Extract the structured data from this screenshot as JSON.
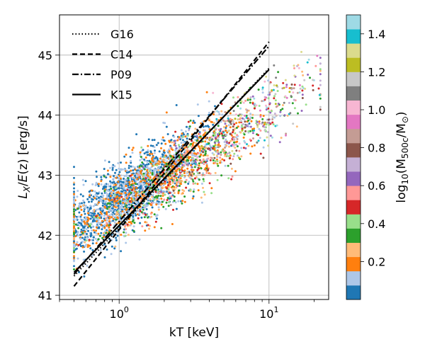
{
  "chart_data": {
    "type": "scatter",
    "title": "",
    "xlabel": "kT [keV]",
    "ylabel": "L_X/E(z) [erg/s]",
    "xscale": "log",
    "xlim": [
      0.4,
      25
    ],
    "ylim": [
      40.93,
      45.67
    ],
    "grid": true,
    "x_ticks": [
      {
        "value": 1,
        "base": "10",
        "exp": "0"
      },
      {
        "value": 10,
        "base": "10",
        "exp": "1"
      }
    ],
    "y_ticks": [
      41,
      42,
      43,
      44,
      45
    ],
    "legend": {
      "placement": "top-left",
      "entries": [
        {
          "label": "G16",
          "dash": "dotted"
        },
        {
          "label": "C14",
          "dash": "dashed"
        },
        {
          "label": "P09",
          "dash": "dashdot"
        },
        {
          "label": "K15",
          "dash": "solid"
        }
      ]
    },
    "relations": [
      {
        "name": "G16",
        "dash": "dotted",
        "x": [
          0.5,
          10
        ],
        "y": [
          41.32,
          44.78
        ]
      },
      {
        "name": "C14",
        "dash": "dashed",
        "x": [
          0.5,
          10
        ],
        "y": [
          41.15,
          45.22
        ]
      },
      {
        "name": "P09",
        "dash": "dashdot",
        "x": [
          0.5,
          10
        ],
        "y": [
          41.35,
          45.15
        ]
      },
      {
        "name": "K15",
        "dash": "solid",
        "x": [
          0.5,
          10
        ],
        "y": [
          41.38,
          44.76
        ]
      }
    ],
    "scatter_cloud": {
      "x_range": [
        0.5,
        22
      ],
      "mass_bins": [
        {
          "min_log_mass": 0.0,
          "center_log_y_at_1keV": 42.62,
          "x_center_log": 0.05,
          "x_spread_log": 0.25,
          "count": 1400
        },
        {
          "min_log_mass": 0.1,
          "center_log_y_at_1keV": 42.55,
          "x_center_log": 0.2,
          "x_spread_log": 0.32,
          "count": 900
        },
        {
          "min_log_mass": 0.2,
          "center_log_y_at_1keV": 42.45,
          "x_center_log": 0.4,
          "x_spread_log": 0.35,
          "count": 500
        },
        {
          "min_log_mass": 0.4,
          "center_log_y_at_1keV": 42.45,
          "x_center_log": 0.55,
          "x_spread_log": 0.35,
          "count": 220
        },
        {
          "min_log_mass": 0.6,
          "center_log_y_at_1keV": 42.5,
          "x_center_log": 0.75,
          "x_spread_log": 0.3,
          "count": 160
        },
        {
          "min_log_mass": 0.9,
          "center_log_y_at_1keV": 42.55,
          "x_center_log": 0.9,
          "x_spread_log": 0.22,
          "count": 120
        }
      ]
    },
    "colorbar": {
      "label_base": "log",
      "label_sub": "10",
      "label_open": "(M",
      "label_mass_sub": "500c",
      "label_slash": "/M",
      "label_sun": "⊙",
      "label_close": ")",
      "range": [
        0.0,
        1.5
      ],
      "colors": [
        "#1f77b4",
        "#aec7e8",
        "#ff7f0e",
        "#ffbb78",
        "#2ca02c",
        "#98df8a",
        "#d62728",
        "#ff9896",
        "#9467bd",
        "#c5b0d5",
        "#8c564b",
        "#c49c94",
        "#e377c2",
        "#f7b6d2",
        "#7f7f7f",
        "#c7c7c7",
        "#bcbd22",
        "#dbdb8d",
        "#17becf",
        "#9edae5"
      ],
      "ticks": [
        "0.2",
        "0.4",
        "0.6",
        "0.8",
        "1.0",
        "1.2",
        "1.4"
      ]
    }
  }
}
